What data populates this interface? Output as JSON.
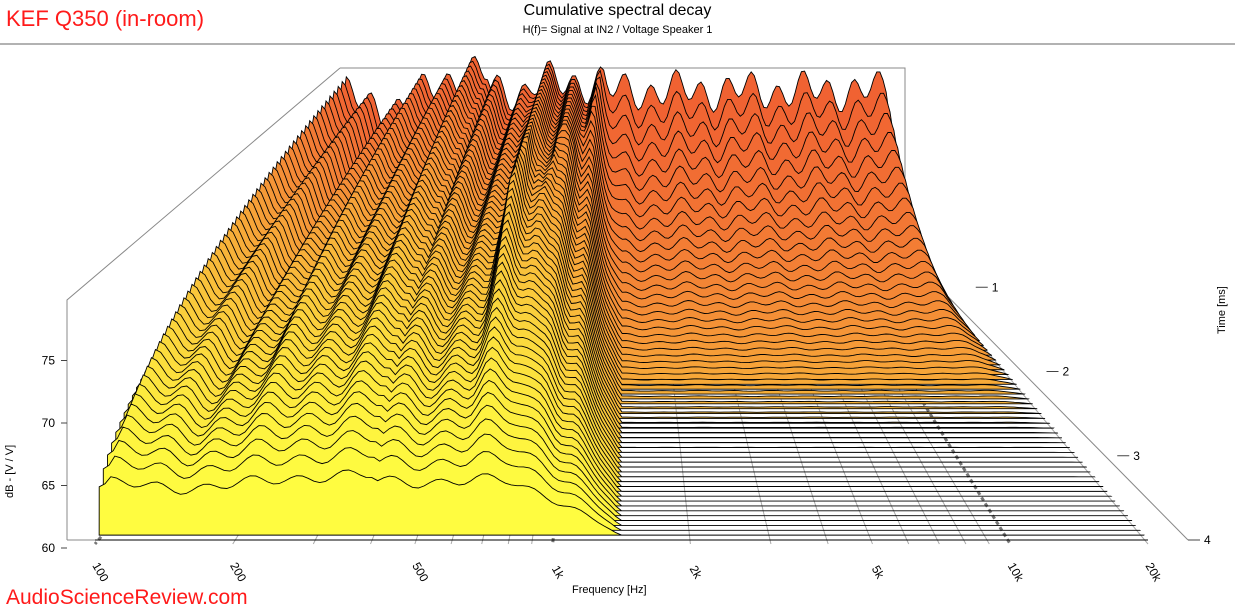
{
  "brand_text": "KEF Q350 (in-room)",
  "watermark_text": "AudioScienceReview.com",
  "chart_data": {
    "type": "waterfall",
    "title": "Cumulative spectral decay",
    "subtitle": "H(f)= Signal at IN2 / Voltage Speaker 1",
    "xlabel": "Frequency [Hz]",
    "ylabel": "dB - [V / V]",
    "zlabel": "Time [ms]",
    "x_range_hz": [
      100,
      20000
    ],
    "x_ticks": [
      {
        "value": 100,
        "label": "100"
      },
      {
        "value": 200,
        "label": "200"
      },
      {
        "value": 500,
        "label": "500"
      },
      {
        "value": 1000,
        "label": "1k"
      },
      {
        "value": 2000,
        "label": "2k"
      },
      {
        "value": 5000,
        "label": "5k"
      },
      {
        "value": 10000,
        "label": "10k"
      },
      {
        "value": 20000,
        "label": "20k"
      }
    ],
    "y_range_db": [
      60,
      80
    ],
    "y_ticks": [
      {
        "value": 60,
        "label": "60"
      },
      {
        "value": 65,
        "label": "65"
      },
      {
        "value": 70,
        "label": "70"
      },
      {
        "value": 75,
        "label": "75"
      }
    ],
    "time_range_ms": [
      0,
      4
    ],
    "time_ticks": [
      {
        "value": 1,
        "label": "1"
      },
      {
        "value": 2,
        "label": "2"
      },
      {
        "value": 3,
        "label": "3"
      },
      {
        "value": 4,
        "label": "4"
      }
    ],
    "slice_count": 60,
    "color_gradient": [
      "#ffff40",
      "#f06232"
    ],
    "description_values": {
      "initial_response_db_approx": 79,
      "floor_db": 60
    }
  }
}
